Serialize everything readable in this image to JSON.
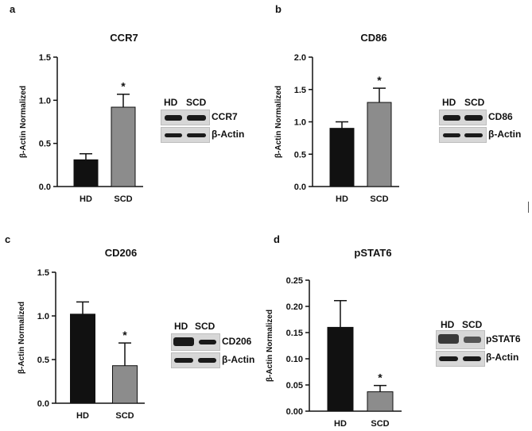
{
  "figure": {
    "panels": [
      {
        "letter": "a",
        "title": "CCR7",
        "ylabel": "β-Actin Normalized",
        "blot": {
          "lane_labels": [
            "HD",
            "SCD"
          ],
          "rows": [
            "CCR7",
            "β-Actin"
          ]
        }
      },
      {
        "letter": "b",
        "title": "CD86",
        "ylabel": "β-Actin Normalized",
        "blot": {
          "lane_labels": [
            "HD",
            "SCD"
          ],
          "rows": [
            "CD86",
            "β-Actin"
          ]
        }
      },
      {
        "letter": "c",
        "title": "CD206",
        "ylabel": "β-Actin Normalized",
        "blot": {
          "lane_labels": [
            "HD",
            "SCD"
          ],
          "rows": [
            "CD206",
            "β-Actin"
          ]
        }
      },
      {
        "letter": "d",
        "title": "pSTAT6",
        "ylabel": "β-Actin Normalized",
        "blot": {
          "lane_labels": [
            "HD",
            "SCD"
          ],
          "rows": [
            "pSTAT6",
            "β-Actin"
          ]
        }
      }
    ]
  },
  "colors": {
    "hd_bar": "#111111",
    "scd_bar": "#8c8c8c",
    "axis": "#111111"
  },
  "chart_data": [
    {
      "type": "bar",
      "title": "CCR7",
      "ylabel": "β-Actin Normalized",
      "xlabel": "",
      "categories": [
        "HD",
        "SCD"
      ],
      "values": [
        0.31,
        0.92
      ],
      "errors": [
        0.07,
        0.15
      ],
      "significance": [
        "",
        "*"
      ],
      "ylim": [
        0,
        1.5
      ],
      "yticks": [
        "0.0",
        "0.5",
        "1.0",
        "1.5"
      ]
    },
    {
      "type": "bar",
      "title": "CD86",
      "ylabel": "β-Actin Normalized",
      "xlabel": "",
      "categories": [
        "HD",
        "SCD"
      ],
      "values": [
        0.9,
        1.3
      ],
      "errors": [
        0.1,
        0.22
      ],
      "significance": [
        "",
        "*"
      ],
      "ylim": [
        0,
        2.0
      ],
      "yticks": [
        "0.0",
        "0.5",
        "1.0",
        "1.5",
        "2.0"
      ]
    },
    {
      "type": "bar",
      "title": "CD206",
      "ylabel": "β-Actin Normalized",
      "xlabel": "",
      "categories": [
        "HD",
        "SCD"
      ],
      "values": [
        1.02,
        0.43
      ],
      "errors": [
        0.14,
        0.26
      ],
      "significance": [
        "",
        "*"
      ],
      "ylim": [
        0,
        1.5
      ],
      "yticks": [
        "0.0",
        "0.5",
        "1.0",
        "1.5"
      ]
    },
    {
      "type": "bar",
      "title": "pSTAT6",
      "ylabel": "β-Actin Normalized",
      "xlabel": "",
      "categories": [
        "HD",
        "SCD"
      ],
      "values": [
        0.16,
        0.037
      ],
      "errors": [
        0.051,
        0.012
      ],
      "significance": [
        "",
        "*"
      ],
      "ylim": [
        0,
        0.25
      ],
      "yticks": [
        "0.00",
        "0.05",
        "0.10",
        "0.15",
        "0.20",
        "0.25"
      ]
    }
  ]
}
